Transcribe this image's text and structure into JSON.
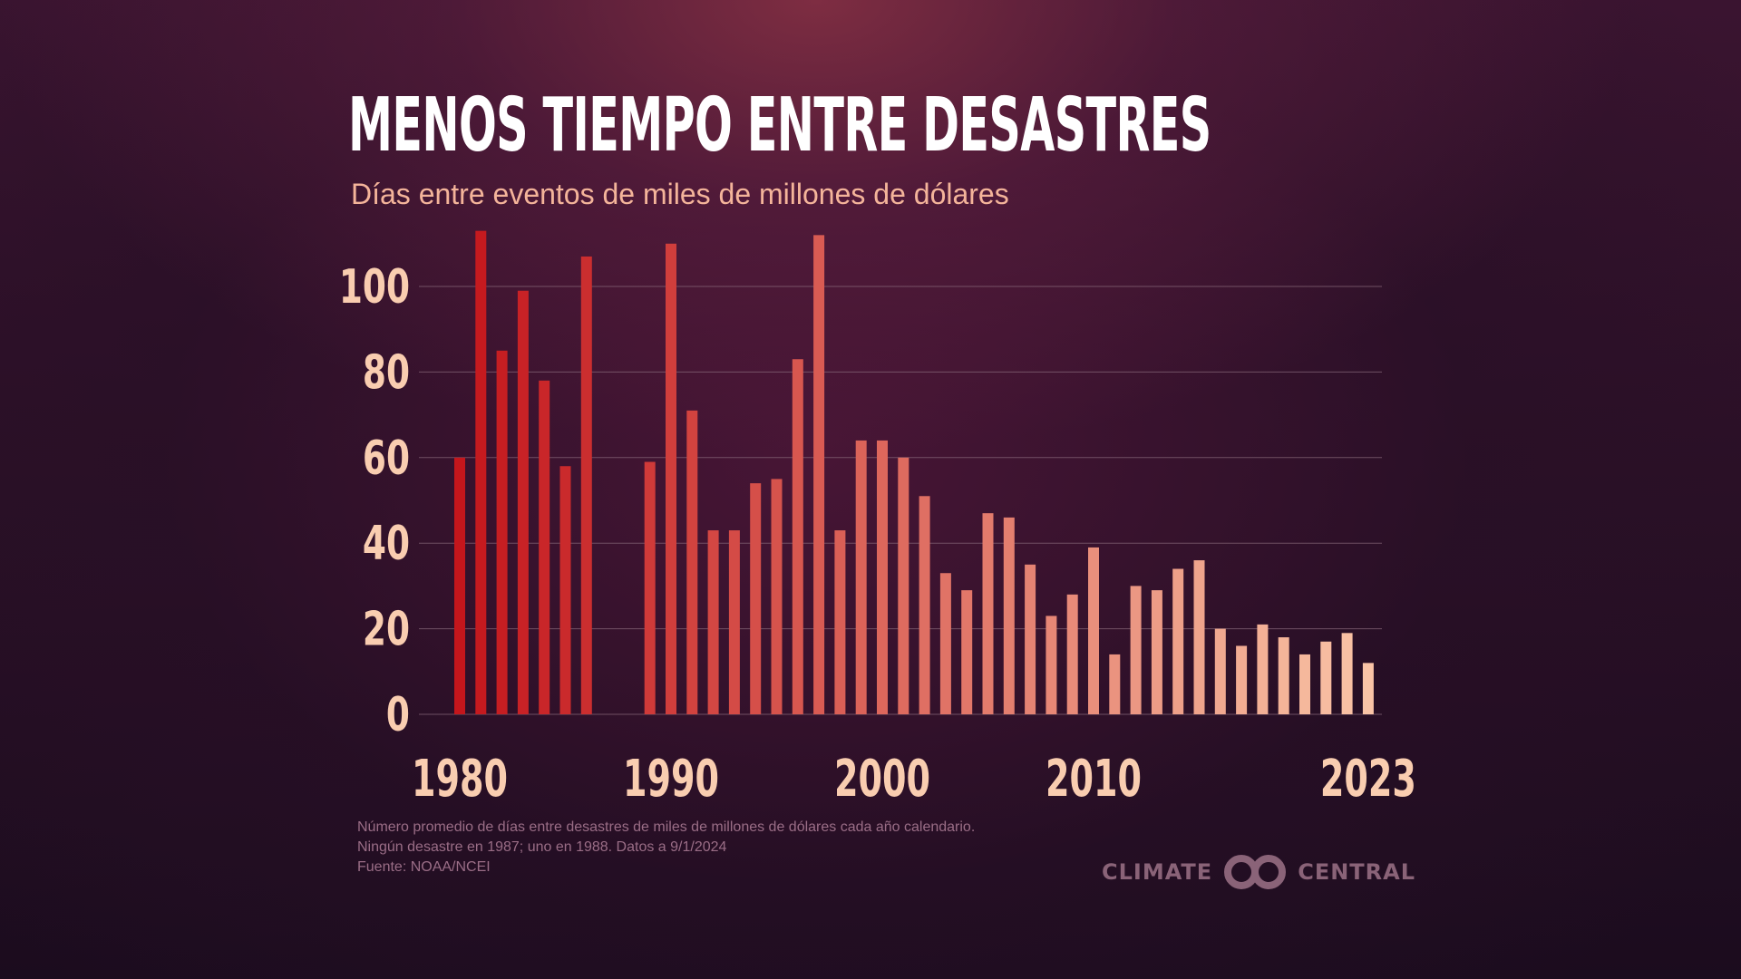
{
  "title": "MENOS TIEMPO ENTRE DESASTRES",
  "subtitle": "Días entre eventos de miles de millones de dólares",
  "footnotes": {
    "line1": "Número promedio de días entre desastres de miles de millones de dólares cada año calendario.",
    "line2": "Ningún desastre en 1987; uno en 1988. Datos a 9/1/2024",
    "line3": "Fuente: NOAA/NCEI"
  },
  "logo": {
    "left_text": "CLIMATE",
    "right_text": "CENTRAL"
  },
  "colors": {
    "bar_start": "#c4161c",
    "bar_end": "#f9c4a6",
    "tick_text": "#f9cdb0",
    "gridline": "#8a6b7c"
  },
  "chart_data": {
    "type": "bar",
    "title": "MENOS TIEMPO ENTRE DESASTRES",
    "subtitle": "Días entre eventos de miles de millones de dólares",
    "xlabel": "",
    "ylabel": "",
    "grid": true,
    "ylim": [
      0,
      113
    ],
    "y_ticks": [
      0,
      20,
      40,
      60,
      80,
      100
    ],
    "x_tick_labels": [
      "1980",
      "1990",
      "2000",
      "2010",
      "2023"
    ],
    "categories": [
      1980,
      1981,
      1982,
      1983,
      1984,
      1985,
      1986,
      1987,
      1988,
      1989,
      1990,
      1991,
      1992,
      1993,
      1994,
      1995,
      1996,
      1997,
      1998,
      1999,
      2000,
      2001,
      2002,
      2003,
      2004,
      2005,
      2006,
      2007,
      2008,
      2009,
      2010,
      2011,
      2012,
      2013,
      2014,
      2015,
      2016,
      2017,
      2018,
      2019,
      2020,
      2021,
      2022,
      2023
    ],
    "values": [
      60,
      113,
      85,
      99,
      78,
      58,
      107,
      0,
      null,
      59,
      110,
      71,
      43,
      43,
      54,
      55,
      83,
      112,
      43,
      64,
      64,
      60,
      51,
      33,
      29,
      47,
      46,
      35,
      23,
      28,
      39,
      14,
      30,
      29,
      34,
      36,
      20,
      16,
      21,
      18,
      14,
      17,
      19,
      12
    ]
  }
}
